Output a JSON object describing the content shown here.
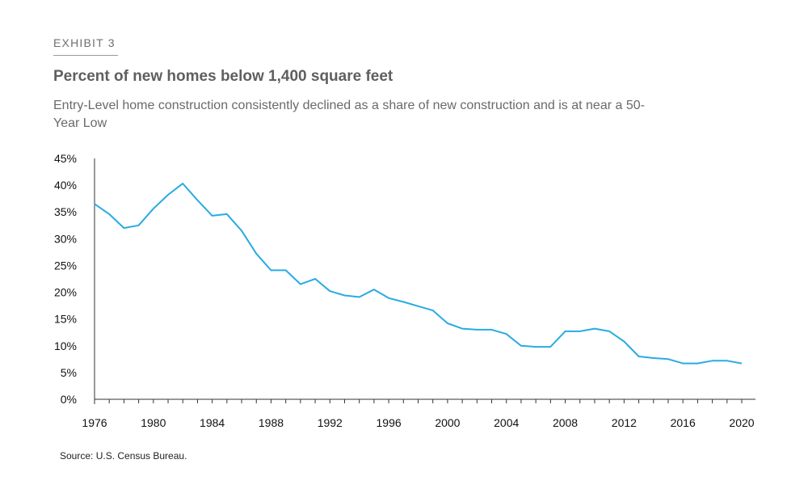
{
  "header": {
    "exhibit": "EXHIBIT 3",
    "title": "Percent of new homes below 1,400 square feet",
    "subtitle": "Entry-Level home construction consistently declined as a share of new construction and is at near a 50-Year Low"
  },
  "footer": {
    "source": "Source: U.S. Census Bureau."
  },
  "colors": {
    "line": "#29abe2",
    "axis": "#333333",
    "text": "#111111"
  },
  "chart_data": {
    "type": "line",
    "xlim": [
      1976,
      2020
    ],
    "ylim": [
      0,
      45
    ],
    "x_ticks": [
      1976,
      1980,
      1984,
      1988,
      1992,
      1996,
      2000,
      2004,
      2008,
      2012,
      2016,
      2020
    ],
    "y_ticks": [
      0,
      5,
      10,
      15,
      20,
      25,
      30,
      35,
      40,
      45
    ],
    "y_tick_labels": [
      "0%",
      "5%",
      "10%",
      "15%",
      "20%",
      "25%",
      "30%",
      "35%",
      "40%",
      "45%"
    ],
    "grid": false,
    "series": [
      {
        "x": [
          1976,
          1977,
          1978,
          1979,
          1980,
          1981,
          1982,
          1983,
          1984,
          1985,
          1986,
          1987,
          1988,
          1989,
          1990,
          1991,
          1992,
          1993,
          1994,
          1995,
          1996,
          1997,
          1998,
          1999,
          2000,
          2001,
          2002,
          2003,
          2004,
          2005,
          2006,
          2007,
          2008,
          2009,
          2010,
          2011,
          2012,
          2013,
          2014,
          2015,
          2016,
          2017,
          2018,
          2019,
          2020
        ],
        "values": [
          36.5,
          34.6,
          32.0,
          32.5,
          35.6,
          38.2,
          40.3,
          37.2,
          34.3,
          34.6,
          31.5,
          27.2,
          24.1,
          24.1,
          21.5,
          22.5,
          20.2,
          19.4,
          19.1,
          20.5,
          18.9,
          18.2,
          17.4,
          16.6,
          14.2,
          13.2,
          13.0,
          13.0,
          12.2,
          10.0,
          9.8,
          9.8,
          12.7,
          12.7,
          13.2,
          12.7,
          10.8,
          8.0,
          7.7,
          7.5,
          6.7,
          6.7,
          7.2,
          7.2,
          6.7
        ]
      }
    ]
  }
}
